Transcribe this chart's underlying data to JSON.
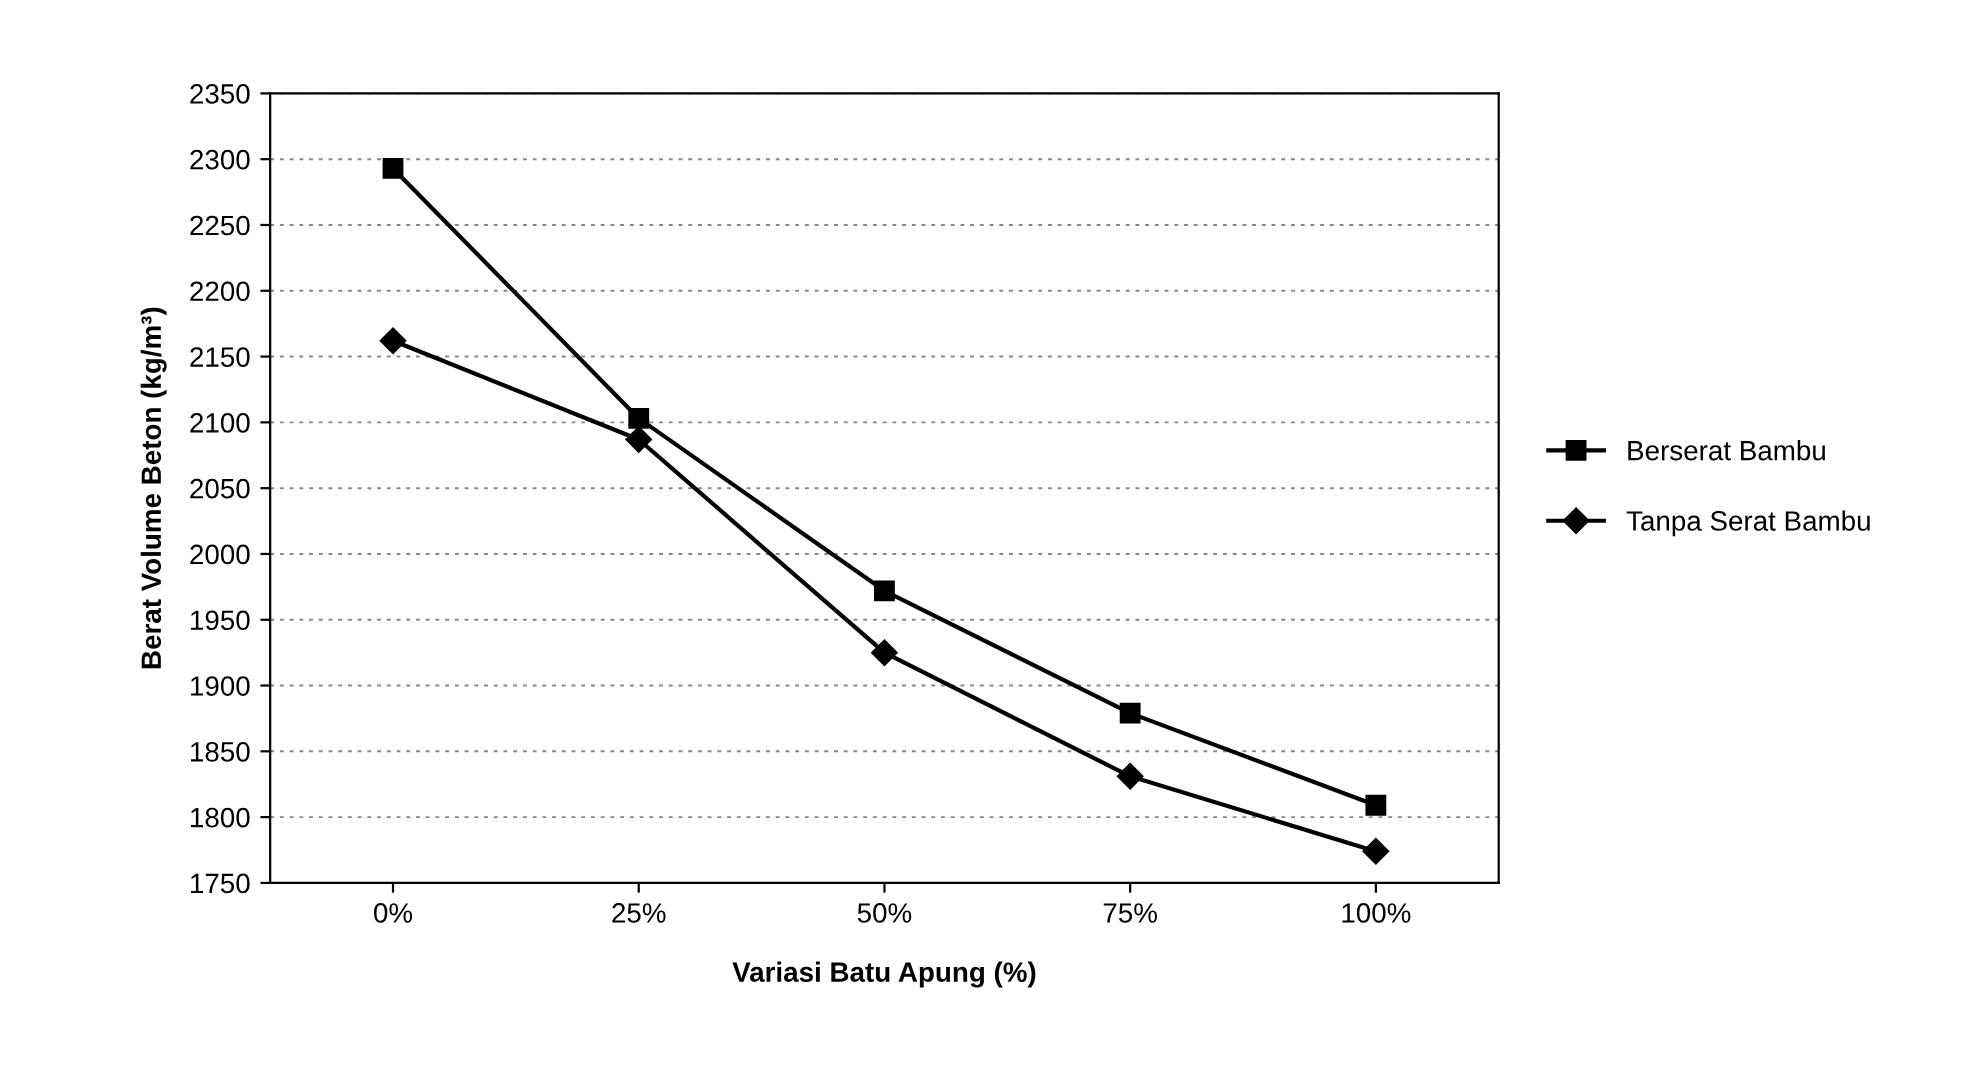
{
  "chart_data": {
    "type": "line",
    "xlabel": "Variasi Batu Apung (%)",
    "ylabel": "Berat Volume Beton (kg/m³)",
    "categories": [
      "0%",
      "25%",
      "50%",
      "75%",
      "100%"
    ],
    "series": [
      {
        "name": "Berserat Bambu",
        "color": "#000000",
        "marker": "square",
        "values": [
          2293,
          2103,
          1972,
          1879,
          1809
        ]
      },
      {
        "name": "Tanpa Serat Bambu",
        "color": "#000000",
        "marker": "diamond",
        "values": [
          2162,
          2087,
          1925,
          1831,
          1774
        ]
      }
    ],
    "ylim": [
      1750,
      2350
    ],
    "yticks": [
      1750,
      1800,
      1850,
      1900,
      1950,
      2000,
      2050,
      2100,
      2150,
      2200,
      2250,
      2300,
      2350
    ],
    "grid": "y",
    "legend": "right",
    "line_style": "solid"
  }
}
